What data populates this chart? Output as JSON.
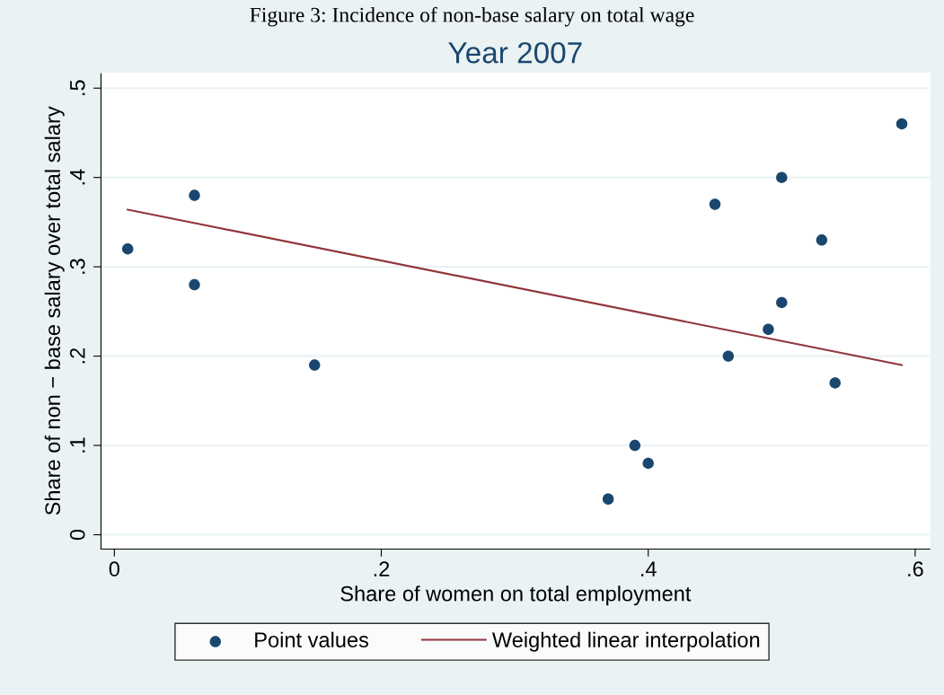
{
  "chart_data": {
    "type": "scatter",
    "title": "Year 2007",
    "xlabel": "Share of women on total employment",
    "ylabel": "Share of non − base salary over total salary",
    "annotations": [
      "Figure 3: Incidence of non-base salary on total wage"
    ],
    "series": [
      {
        "name": "Point values",
        "color": "#1a476f",
        "marker": "circle",
        "x": [
          0.01,
          0.06,
          0.06,
          0.15,
          0.37,
          0.39,
          0.4,
          0.45,
          0.46,
          0.49,
          0.5,
          0.5,
          0.53,
          0.54,
          0.59
        ],
        "values": [
          0.32,
          0.38,
          0.28,
          0.19,
          0.04,
          0.1,
          0.08,
          0.37,
          0.2,
          0.23,
          0.4,
          0.26,
          0.33,
          0.17,
          0.46
        ]
      },
      {
        "name": "Weighted linear interpolation",
        "type": "line",
        "color": "#90353b",
        "x": [
          0.01,
          0.59
        ],
        "values": [
          0.364,
          0.19
        ]
      }
    ],
    "xlim": [
      -0.01,
      0.611
    ],
    "ylim": [
      -0.016,
      0.517
    ],
    "xticks": [
      {
        "value": 0,
        "label": "0"
      },
      {
        "value": 0.2,
        "label": ".2"
      },
      {
        "value": 0.4,
        "label": ".4"
      },
      {
        "value": 0.6,
        "label": ".6"
      }
    ],
    "yticks": [
      {
        "value": 0,
        "label": "0"
      },
      {
        "value": 0.1,
        "label": ".1"
      },
      {
        "value": 0.2,
        "label": ".2"
      },
      {
        "value": 0.3,
        "label": ".3"
      },
      {
        "value": 0.4,
        "label": ".4"
      },
      {
        "value": 0.5,
        "label": ".5"
      }
    ],
    "grid": "y",
    "legend": "bottom"
  }
}
